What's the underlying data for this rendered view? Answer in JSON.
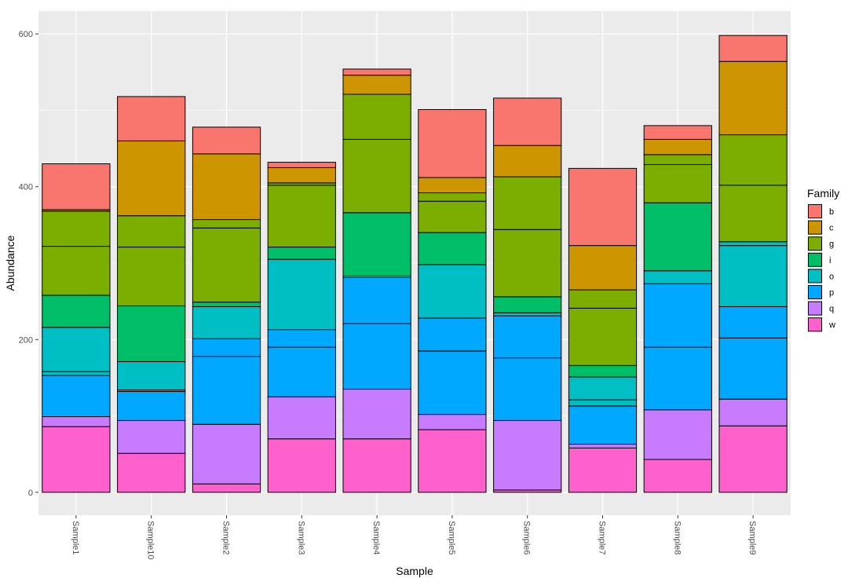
{
  "chart_data": {
    "type": "bar",
    "stacked": true,
    "title": "",
    "xlabel": "Sample",
    "ylabel": "Abundance",
    "ylim": [
      -30,
      630
    ],
    "yticks": [
      0,
      200,
      400,
      600
    ],
    "grid": true,
    "legend_title": "Family",
    "legend_position": "right",
    "categories": [
      "Sample1",
      "Sample10",
      "Sample2",
      "Sample3",
      "Sample4",
      "Sample5",
      "Sample6",
      "Sample7",
      "Sample8",
      "Sample9"
    ],
    "families": [
      {
        "name": "b",
        "color": "#F8766D"
      },
      {
        "name": "c",
        "color": "#CD9600"
      },
      {
        "name": "g",
        "color": "#7CAE00"
      },
      {
        "name": "i",
        "color": "#00BE67"
      },
      {
        "name": "o",
        "color": "#00BFC4"
      },
      {
        "name": "p",
        "color": "#00A9FF"
      },
      {
        "name": "q",
        "color": "#C77CFF"
      },
      {
        "name": "w",
        "color": "#FF61CC"
      }
    ],
    "stacks": {
      "Sample1": [
        {
          "family": "w",
          "value": 86
        },
        {
          "family": "q",
          "value": 13
        },
        {
          "family": "p",
          "value": 54
        },
        {
          "family": "o",
          "value": 5
        },
        {
          "family": "o",
          "value": 58
        },
        {
          "family": "i",
          "value": 42
        },
        {
          "family": "g",
          "value": 64
        },
        {
          "family": "g",
          "value": 46
        },
        {
          "family": "c",
          "value": 2
        },
        {
          "family": "b",
          "value": 60
        }
      ],
      "Sample10": [
        {
          "family": "w",
          "value": 51
        },
        {
          "family": "q",
          "value": 43
        },
        {
          "family": "p",
          "value": 38
        },
        {
          "family": "o",
          "value": 2
        },
        {
          "family": "o",
          "value": 37
        },
        {
          "family": "i",
          "value": 73
        },
        {
          "family": "g",
          "value": 77
        },
        {
          "family": "g",
          "value": 41
        },
        {
          "family": "c",
          "value": 98
        },
        {
          "family": "b",
          "value": 58
        }
      ],
      "Sample2": [
        {
          "family": "w",
          "value": 11
        },
        {
          "family": "q",
          "value": 78
        },
        {
          "family": "p",
          "value": 89
        },
        {
          "family": "p",
          "value": 23
        },
        {
          "family": "o",
          "value": 42
        },
        {
          "family": "i",
          "value": 6
        },
        {
          "family": "g",
          "value": 97
        },
        {
          "family": "g",
          "value": 11
        },
        {
          "family": "c",
          "value": 86
        },
        {
          "family": "b",
          "value": 35
        }
      ],
      "Sample3": [
        {
          "family": "w",
          "value": 70
        },
        {
          "family": "q",
          "value": 55
        },
        {
          "family": "p",
          "value": 65
        },
        {
          "family": "p",
          "value": 23
        },
        {
          "family": "o",
          "value": 92
        },
        {
          "family": "i",
          "value": 16
        },
        {
          "family": "g",
          "value": 81
        },
        {
          "family": "g",
          "value": 3
        },
        {
          "family": "c",
          "value": 20
        },
        {
          "family": "b",
          "value": 7
        }
      ],
      "Sample4": [
        {
          "family": "w",
          "value": 70
        },
        {
          "family": "q",
          "value": 65
        },
        {
          "family": "p",
          "value": 86
        },
        {
          "family": "p",
          "value": 60
        },
        {
          "family": "o",
          "value": 2
        },
        {
          "family": "i",
          "value": 83
        },
        {
          "family": "g",
          "value": 96
        },
        {
          "family": "g",
          "value": 59
        },
        {
          "family": "c",
          "value": 25
        },
        {
          "family": "b",
          "value": 8
        }
      ],
      "Sample5": [
        {
          "family": "w",
          "value": 82
        },
        {
          "family": "q",
          "value": 20
        },
        {
          "family": "p",
          "value": 83
        },
        {
          "family": "p",
          "value": 43
        },
        {
          "family": "o",
          "value": 70
        },
        {
          "family": "i",
          "value": 42
        },
        {
          "family": "g",
          "value": 41
        },
        {
          "family": "g",
          "value": 11
        },
        {
          "family": "c",
          "value": 20
        },
        {
          "family": "b",
          "value": 89
        }
      ],
      "Sample6": [
        {
          "family": "w",
          "value": 3
        },
        {
          "family": "q",
          "value": 91
        },
        {
          "family": "p",
          "value": 82
        },
        {
          "family": "p",
          "value": 55
        },
        {
          "family": "o",
          "value": 4
        },
        {
          "family": "i",
          "value": 21
        },
        {
          "family": "g",
          "value": 88
        },
        {
          "family": "g",
          "value": 69
        },
        {
          "family": "c",
          "value": 41
        },
        {
          "family": "b",
          "value": 62
        }
      ],
      "Sample7": [
        {
          "family": "w",
          "value": 58
        },
        {
          "family": "q",
          "value": 5
        },
        {
          "family": "p",
          "value": 50
        },
        {
          "family": "o",
          "value": 8
        },
        {
          "family": "o",
          "value": 30
        },
        {
          "family": "i",
          "value": 15
        },
        {
          "family": "g",
          "value": 75
        },
        {
          "family": "g",
          "value": 24
        },
        {
          "family": "c",
          "value": 58
        },
        {
          "family": "b",
          "value": 101
        }
      ],
      "Sample8": [
        {
          "family": "w",
          "value": 43
        },
        {
          "family": "q",
          "value": 65
        },
        {
          "family": "p",
          "value": 82
        },
        {
          "family": "p",
          "value": 83
        },
        {
          "family": "o",
          "value": 17
        },
        {
          "family": "i",
          "value": 89
        },
        {
          "family": "g",
          "value": 50
        },
        {
          "family": "g",
          "value": 13
        },
        {
          "family": "c",
          "value": 20
        },
        {
          "family": "b",
          "value": 18
        }
      ],
      "Sample9": [
        {
          "family": "w",
          "value": 87
        },
        {
          "family": "q",
          "value": 35
        },
        {
          "family": "p",
          "value": 80
        },
        {
          "family": "p",
          "value": 41
        },
        {
          "family": "o",
          "value": 80
        },
        {
          "family": "o",
          "value": 5
        },
        {
          "family": "g",
          "value": 74
        },
        {
          "family": "g",
          "value": 66
        },
        {
          "family": "c",
          "value": 96
        },
        {
          "family": "b",
          "value": 34
        }
      ]
    }
  }
}
